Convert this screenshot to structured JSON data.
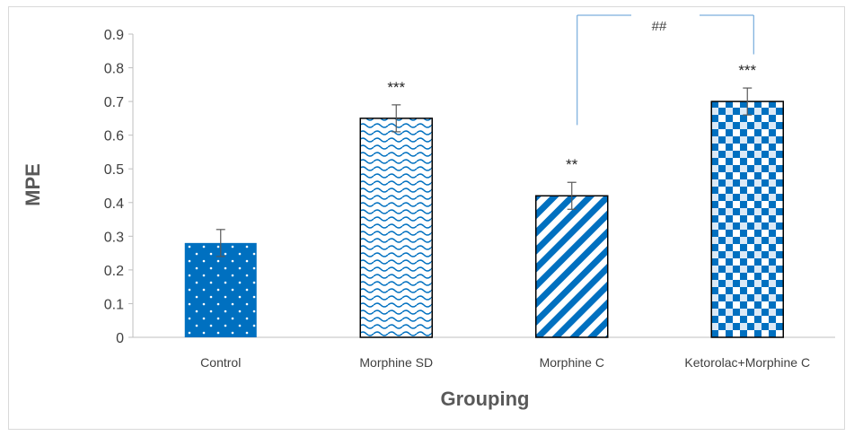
{
  "chart_data": {
    "type": "bar",
    "categories": [
      "Control",
      "Morphine SD",
      "Morphine C",
      "Ketorolac+Morphine C"
    ],
    "values": [
      0.28,
      0.65,
      0.42,
      0.7
    ],
    "errors": [
      0.04,
      0.04,
      0.04,
      0.04
    ],
    "significance": [
      "",
      "***",
      "**",
      "***"
    ],
    "comparison": {
      "from": "Morphine C",
      "to": "Ketorolac+Morphine C",
      "label": "##"
    },
    "xlabel": "Grouping",
    "ylabel": "MPE",
    "ylim": [
      0,
      0.9
    ],
    "yticks": [
      "0",
      "0.1",
      "0.2",
      "0.3",
      "0.4",
      "0.5",
      "0.6",
      "0.7",
      "0.8",
      "0.9"
    ],
    "grid": false,
    "legend": "none",
    "colors": {
      "bar": "#0070c0",
      "text": "#404040",
      "axis": "#bfbfbf",
      "bracket": "#5b9bd5"
    },
    "patterns": [
      "dots",
      "waves",
      "diagonal-stripes",
      "checker"
    ]
  }
}
